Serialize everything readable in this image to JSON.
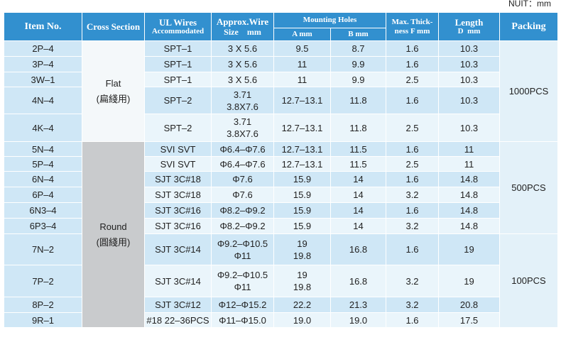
{
  "unit": "NUIT：mm",
  "header": {
    "item": "Item No.",
    "cross": "Cross Section",
    "ul": [
      "UL Wires",
      "Accommodated"
    ],
    "wire": [
      "Approx.Wire",
      "Size    mm"
    ],
    "holes": "Mounting Holes",
    "a": "A mm",
    "b": "B mm",
    "thick": [
      "Max. Thick-",
      "ness F mm"
    ],
    "length": [
      "Length",
      "D  mm"
    ],
    "packing": "Packing"
  },
  "rows": [
    {
      "item": "2P–4",
      "ul": "SPT–1",
      "wire": [
        "3 X 5.6"
      ],
      "a": [
        "9.5"
      ],
      "b": "8.7",
      "thick": "1.6",
      "length": "10.3"
    },
    {
      "item": "3P–4",
      "ul": "SPT–1",
      "wire": [
        "3 X 5.6"
      ],
      "a": [
        "11"
      ],
      "b": "9.9",
      "thick": "1.6",
      "length": "10.3"
    },
    {
      "item": "3W–1",
      "ul": "SPT–1",
      "wire": [
        "3 X 5.6"
      ],
      "a": [
        "11"
      ],
      "b": "9.9",
      "thick": "2.5",
      "length": "10.3"
    },
    {
      "item": "4N–4",
      "ul": "SPT–2",
      "wire": [
        "3.71",
        "3.8X7.6"
      ],
      "a": [
        "12.7–13.1"
      ],
      "b": "11.8",
      "thick": "1.6",
      "length": "10.3"
    },
    {
      "item": "4K–4",
      "ul": "SPT–2",
      "wire": [
        "3.71",
        "3.8X7.6"
      ],
      "a": [
        "12.7–13.1"
      ],
      "b": "11.8",
      "thick": "2.5",
      "length": "10.3"
    },
    {
      "item": "5N–4",
      "ul": "SVI SVT",
      "wire": [
        "Φ6.4–Φ7.6"
      ],
      "a": [
        "12.7–13.1"
      ],
      "b": "11.5",
      "thick": "1.6",
      "length": "11"
    },
    {
      "item": "5P–4",
      "ul": "SVI SVT",
      "wire": [
        "Φ6.4–Φ7.6"
      ],
      "a": [
        "12.7–13.1"
      ],
      "b": "11.5",
      "thick": "2.5",
      "length": "11"
    },
    {
      "item": "6N–4",
      "ul": "SJT 3C#18",
      "wire": [
        "Φ7.6"
      ],
      "a": [
        "15.9"
      ],
      "b": "14",
      "thick": "1.6",
      "length": "14.8"
    },
    {
      "item": "6P–4",
      "ul": "SJT 3C#18",
      "wire": [
        "Φ7.6"
      ],
      "a": [
        "15.9"
      ],
      "b": "14",
      "thick": "3.2",
      "length": "14.8"
    },
    {
      "item": "6N3–4",
      "ul": "SJT 3C#16",
      "wire": [
        "Φ8.2–Φ9.2"
      ],
      "a": [
        "15.9"
      ],
      "b": "14",
      "thick": "1.6",
      "length": "14.8"
    },
    {
      "item": "6P3–4",
      "ul": "SJT 3C#16",
      "wire": [
        "Φ8.2–Φ9.2"
      ],
      "a": [
        "15.9"
      ],
      "b": "14",
      "thick": "3.2",
      "length": "14.8"
    },
    {
      "item": "7N–2",
      "ul": "SJT 3C#14",
      "wire": [
        "Φ9.2–Φ10.5",
        "Φ11"
      ],
      "a": [
        "19",
        "19.8"
      ],
      "b": "16.8",
      "thick": "1.6",
      "length": "19"
    },
    {
      "item": "7P–2",
      "ul": "SJT 3C#14",
      "wire": [
        "Φ9.2–Φ10.5",
        "Φ11"
      ],
      "a": [
        "19",
        "19.8"
      ],
      "b": "16.8",
      "thick": "3.2",
      "length": "19"
    },
    {
      "item": "8P–2",
      "ul": "SJT 3C#12",
      "wire": [
        "Φ12–Φ15.2"
      ],
      "a": [
        "22.2"
      ],
      "b": "21.3",
      "thick": "3.2",
      "length": "20.8"
    },
    {
      "item": "9R–1",
      "ul": "#18 22–36PCS",
      "wire": [
        "Φ11–Φ15.0"
      ],
      "a": [
        "19.0"
      ],
      "b": "19.0",
      "thick": "1.6",
      "length": "17.5"
    }
  ],
  "cross_sections": [
    {
      "label": "Flat",
      "sub": "(扁綫用)"
    },
    {
      "label": "Round",
      "sub": "(圓綫用)"
    }
  ],
  "packing": [
    "1000PCS",
    "500PCS",
    "100PCS"
  ]
}
